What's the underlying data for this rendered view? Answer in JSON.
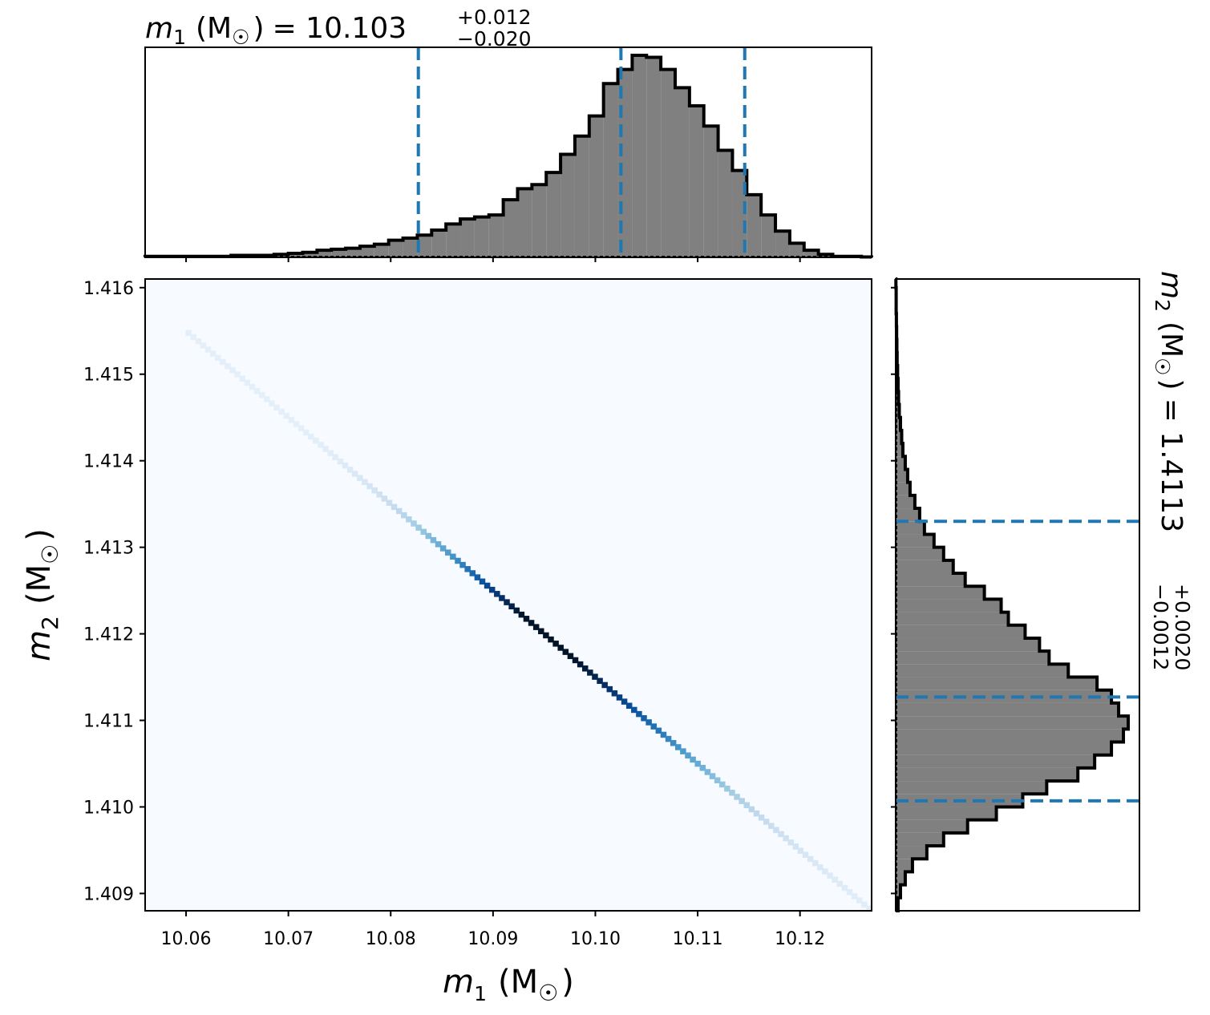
{
  "chart_data": [
    {
      "type": "histogram",
      "panel": "top-marginal",
      "title": {
        "symbol": "m",
        "subscript": "1",
        "unit": "(M",
        "sun": "☉",
        "close": ")",
        "eq": "= 10.103",
        "sup": "+0.012",
        "sub": "−0.020"
      },
      "xlim": [
        10.056,
        10.127
      ],
      "bin_edges_start": 10.056,
      "bin_width": 0.0014,
      "counts": [
        0.005,
        0.005,
        0.005,
        0.005,
        0.005,
        0.005,
        0.01,
        0.01,
        0.01,
        0.015,
        0.02,
        0.025,
        0.035,
        0.04,
        0.045,
        0.055,
        0.065,
        0.085,
        0.095,
        0.11,
        0.135,
        0.165,
        0.19,
        0.2,
        0.21,
        0.285,
        0.34,
        0.36,
        0.42,
        0.51,
        0.6,
        0.7,
        0.86,
        0.93,
        1.0,
        0.99,
        0.93,
        0.84,
        0.75,
        0.65,
        0.53,
        0.43,
        0.31,
        0.21,
        0.13,
        0.07,
        0.035,
        0.015,
        0.005,
        0.005,
        0.002
      ],
      "quantiles": [
        10.0827,
        10.1025,
        10.1146
      ],
      "quantile_color": "#1f77b4",
      "fill_color": "#808080",
      "edge_color": "#000000"
    },
    {
      "type": "heatmap",
      "panel": "joint",
      "xlabel": {
        "symbol": "m",
        "subscript": "1",
        "unit": "(M",
        "sun": "☉",
        "close": ")"
      },
      "ylabel": {
        "symbol": "m",
        "subscript": "2",
        "unit": "(M",
        "sun": "☉",
        "close": ")"
      },
      "xlim": [
        10.056,
        10.127
      ],
      "ylim": [
        1.4088,
        1.4161
      ],
      "xticks": [
        10.06,
        10.07,
        10.08,
        10.09,
        10.1,
        10.11,
        10.12
      ],
      "xtick_labels": [
        "10.06",
        "10.07",
        "10.08",
        "10.09",
        "10.10",
        "10.11",
        "10.12"
      ],
      "yticks": [
        1.409,
        1.41,
        1.411,
        1.412,
        1.413,
        1.414,
        1.415,
        1.416
      ],
      "ytick_labels": [
        "1.409",
        "1.410",
        "1.411",
        "1.412",
        "1.413",
        "1.414",
        "1.415",
        "1.416"
      ],
      "line": {
        "x_start": 10.06,
        "y_start": 1.4155,
        "x_end": 10.127,
        "y_end": 1.4088
      },
      "colormap": "Blues",
      "background_color": "#f7fbff"
    },
    {
      "type": "histogram",
      "panel": "right-marginal",
      "orientation": "horizontal",
      "title": {
        "symbol": "m",
        "subscript": "2",
        "unit": "(M",
        "sun": "☉",
        "close": ")",
        "eq": "= 1.4113",
        "sup": "+0.0020",
        "sub": "−0.0012"
      },
      "ylim": [
        1.4088,
        1.4161
      ],
      "bin_edges_start": 1.4088,
      "bin_width": 0.00015,
      "counts": [
        0.01,
        0.02,
        0.04,
        0.07,
        0.13,
        0.2,
        0.3,
        0.42,
        0.53,
        0.63,
        0.76,
        0.83,
        0.9,
        0.95,
        0.97,
        0.93,
        0.9,
        0.84,
        0.72,
        0.64,
        0.6,
        0.54,
        0.47,
        0.44,
        0.37,
        0.29,
        0.24,
        0.2,
        0.16,
        0.12,
        0.1,
        0.08,
        0.06,
        0.05,
        0.04,
        0.03,
        0.025,
        0.02,
        0.015,
        0.012,
        0.01,
        0.008,
        0.006,
        0.005,
        0.004,
        0.003,
        0.002,
        0.002,
        0.001
      ],
      "quantiles": [
        1.41007,
        1.41127,
        1.4133
      ],
      "quantile_color": "#1f77b4",
      "fill_color": "#808080",
      "edge_color": "#000000"
    }
  ]
}
